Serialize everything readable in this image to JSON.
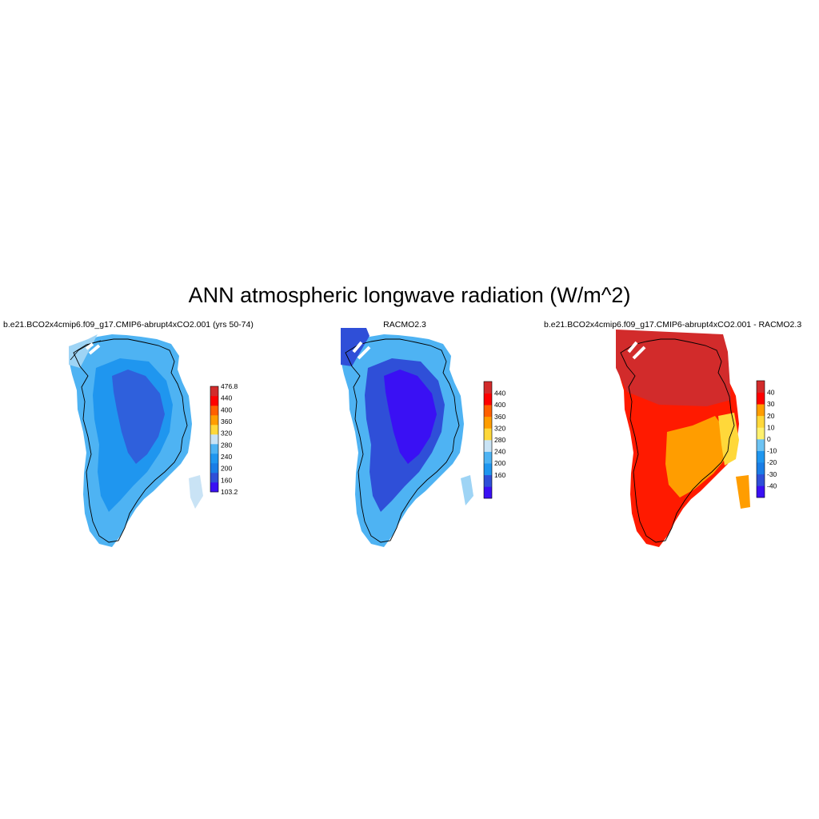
{
  "title": "ANN atmospheric longwave radiation (W/m^2)",
  "panels": [
    {
      "title": "b.e21.BCO2x4cmip6.f09_g17.CMIP6-abrupt4xCO2.001 (yrs 50-74)",
      "colorbar": {
        "colors": [
          "#3a10f4",
          "#2f4fd8",
          "#1a7de6",
          "#1f96ef",
          "#4eb3f3",
          "#c9e3f5",
          "#ffd83a",
          "#ff9d00",
          "#ff5f00",
          "#ff0000",
          "#d22b2b"
        ],
        "labels": [
          "476.8",
          "440",
          "400",
          "360",
          "320",
          "280",
          "240",
          "200",
          "160",
          "103.2"
        ]
      }
    },
    {
      "title": "RACMO2.3",
      "colorbar": {
        "colors": [
          "#3a10f4",
          "#2f4fd8",
          "#1f96ef",
          "#4eb3f3",
          "#c9e3f5",
          "#ffd83a",
          "#ff9d00",
          "#ff5f00",
          "#ff0000",
          "#d22b2b"
        ],
        "labels": [
          "440",
          "400",
          "360",
          "320",
          "280",
          "240",
          "200",
          "160"
        ]
      }
    },
    {
      "title": "b.e21.BCO2x4cmip6.f09_g17.CMIP6-abrupt4xCO2.001 - RACMO2.3",
      "colorbar": {
        "colors": [
          "#3a10f4",
          "#2f4fd8",
          "#1a7de6",
          "#1f96ef",
          "#6cc3f3",
          "#fff16e",
          "#ffd83a",
          "#ff9d00",
          "#ff0000",
          "#d22b2b"
        ],
        "labels": [
          "40",
          "30",
          "20",
          "10",
          "0",
          "-10",
          "-20",
          "-30",
          "-40"
        ]
      }
    }
  ]
}
